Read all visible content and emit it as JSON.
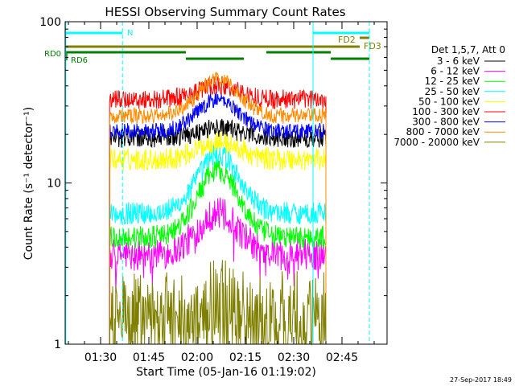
{
  "chart_data": {
    "type": "line",
    "title": "HESSI Observing Summary Count Rates",
    "xlabel": "Start Time (05-Jan-16 01:19:02)",
    "ylabel": "Count Rate (s⁻¹ detector⁻¹)",
    "y_scale": "log",
    "ylim": [
      1,
      100
    ],
    "xlim_minutes_after_0119": [
      0,
      100
    ],
    "x_ticks": [
      "01:30",
      "01:45",
      "02:00",
      "02:15",
      "02:30",
      "02:45"
    ],
    "y_ticks": [
      "1",
      "10",
      "100"
    ],
    "legend_title": "Det 1,5,7, Att 0",
    "legend_position": "right-outside",
    "timestamp": "27-Sep-2017 18:49",
    "flags": {
      "N": "N",
      "FD2": "FD2",
      "FD3": "FD3",
      "RD0": "RD0",
      "RD6": "RD6"
    },
    "series": [
      {
        "name": "3 - 6 keV",
        "color": "#000000",
        "plateau": 19,
        "peak": 22,
        "noise": 0.06
      },
      {
        "name": "6 - 12 keV",
        "color": "#ff00ff",
        "plateau": 3.6,
        "peak": 6.5,
        "noise": 0.1
      },
      {
        "name": "12 - 25 keV",
        "color": "#00ff00",
        "plateau": 4.6,
        "peak": 12,
        "noise": 0.07
      },
      {
        "name": "25 - 50 keV",
        "color": "#00ffff",
        "plateau": 6.5,
        "peak": 15,
        "noise": 0.07
      },
      {
        "name": "50 - 100 keV",
        "color": "#ffff00",
        "plateau": 14,
        "peak": 18,
        "noise": 0.07
      },
      {
        "name": "100 - 300 keV",
        "color": "#ff0000",
        "plateau": 33,
        "peak": 40,
        "noise": 0.06
      },
      {
        "name": "300 - 800 keV",
        "color": "#0000ff",
        "plateau": 21,
        "peak": 33,
        "noise": 0.05
      },
      {
        "name": "800 - 7000 keV",
        "color": "#ff8c00",
        "plateau": 26,
        "peak": 44,
        "noise": 0.05
      },
      {
        "name": "7000 - 20000 keV",
        "color": "#808000",
        "plateau": 1.6,
        "peak": 1.9,
        "noise": 0.25
      }
    ],
    "colors": {
      "night": "#00ffff",
      "saa": "#808000",
      "decimation": "#008000"
    }
  }
}
